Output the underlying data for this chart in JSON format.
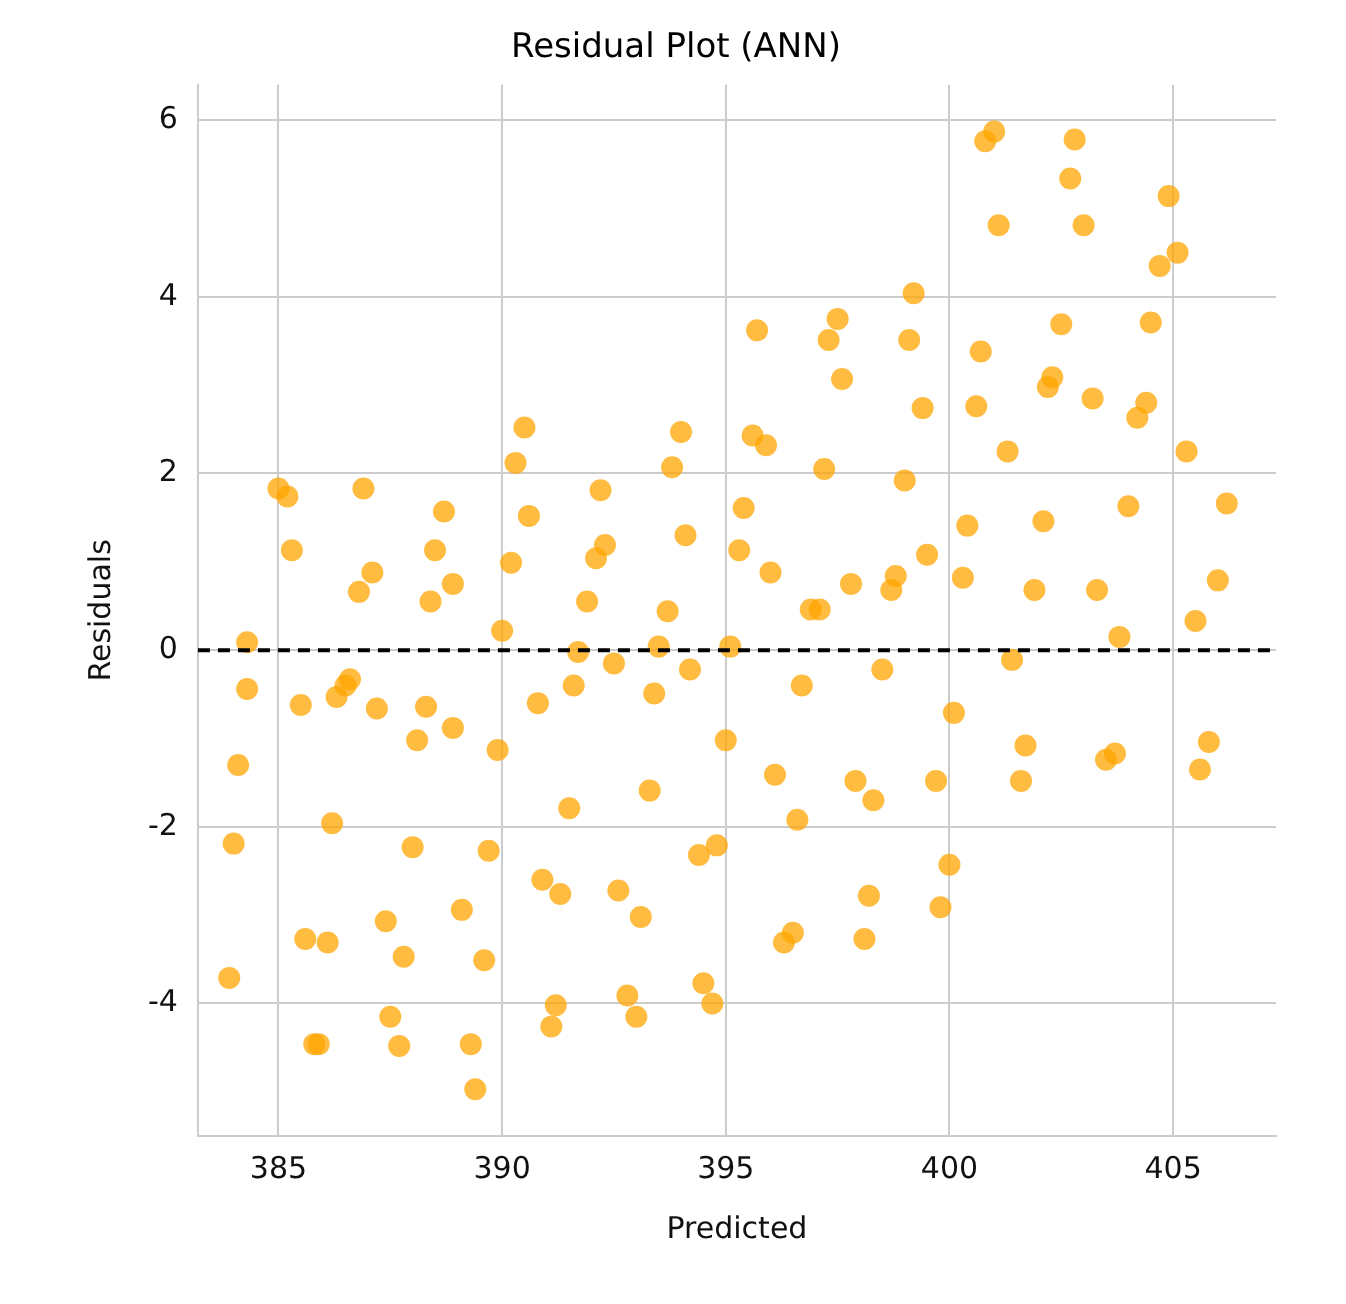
{
  "chart_data": {
    "type": "scatter",
    "title": "Residual Plot (ANN)",
    "xlabel": "Predicted",
    "ylabel": "Residuals",
    "xlim": [
      383.2,
      407.3
    ],
    "ylim": [
      -5.5,
      6.4
    ],
    "xticks": [
      385,
      390,
      395,
      400,
      405
    ],
    "yticks": [
      -4,
      -2,
      0,
      2,
      4,
      6
    ],
    "grid": true,
    "marker": "circle",
    "ref_lines": [
      {
        "axis": "y",
        "value": 0,
        "color": "#000000",
        "line_style": "dashed"
      }
    ],
    "series": [
      {
        "color": "#ffa500",
        "x": [
          383.9,
          384.0,
          384.1,
          384.3,
          384.3,
          385.0,
          385.2,
          385.3,
          385.5,
          385.6,
          385.8,
          385.9,
          386.1,
          386.2,
          386.3,
          386.5,
          386.6,
          386.8,
          386.9,
          387.1,
          387.2,
          387.4,
          387.5,
          387.7,
          387.8,
          388.0,
          388.1,
          388.3,
          388.4,
          388.5,
          388.7,
          388.9,
          388.9,
          389.1,
          389.3,
          389.4,
          389.6,
          389.7,
          389.9,
          390.0,
          390.2,
          390.3,
          390.5,
          390.6,
          390.8,
          390.9,
          391.1,
          391.2,
          391.3,
          391.5,
          391.6,
          391.7,
          391.9,
          392.1,
          392.2,
          392.3,
          392.5,
          392.6,
          392.8,
          393.0,
          393.1,
          393.3,
          393.4,
          393.5,
          393.7,
          393.8,
          394.0,
          394.1,
          394.2,
          394.4,
          394.5,
          394.7,
          394.8,
          395.0,
          395.1,
          395.3,
          395.4,
          395.6,
          395.7,
          395.9,
          396.0,
          396.1,
          396.3,
          396.5,
          396.6,
          396.7,
          396.9,
          397.1,
          397.2,
          397.3,
          397.5,
          397.6,
          397.8,
          397.9,
          398.1,
          398.2,
          398.3,
          398.5,
          398.7,
          398.8,
          399.0,
          399.1,
          399.2,
          399.4,
          399.5,
          399.7,
          399.8,
          400.0,
          400.1,
          400.3,
          400.4,
          400.6,
          400.7,
          400.8,
          401.0,
          401.1,
          401.3,
          401.4,
          401.6,
          401.7,
          401.9,
          402.1,
          402.2,
          402.3,
          402.5,
          402.7,
          402.8,
          403.0,
          403.2,
          403.3,
          403.5,
          403.7,
          403.8,
          404.0,
          404.2,
          404.4,
          404.5,
          404.7,
          404.9,
          405.1,
          405.3,
          405.5,
          405.6,
          405.8,
          406.0,
          406.2
        ],
        "values": [
          -3.71,
          -2.19,
          -1.3,
          -0.44,
          0.09,
          1.83,
          1.74,
          1.13,
          -0.62,
          -3.27,
          -4.46,
          -4.46,
          -3.31,
          -1.96,
          -0.53,
          -0.4,
          -0.33,
          0.66,
          1.83,
          0.88,
          -0.66,
          -3.07,
          -4.15,
          -4.48,
          -3.47,
          -2.23,
          -1.02,
          -0.64,
          0.55,
          1.13,
          1.57,
          0.75,
          -0.88,
          -2.94,
          -4.46,
          -4.97,
          -3.51,
          -2.27,
          -1.13,
          0.22,
          0.99,
          2.12,
          2.52,
          1.52,
          -0.6,
          -2.6,
          -4.26,
          -4.02,
          -2.76,
          -1.79,
          -0.4,
          -0.02,
          0.55,
          1.04,
          1.81,
          1.19,
          -0.15,
          -2.72,
          -3.91,
          -4.15,
          -3.02,
          -1.59,
          -0.49,
          0.04,
          0.44,
          2.07,
          2.47,
          1.3,
          -0.22,
          -2.32,
          -3.77,
          -4.0,
          -2.21,
          -1.02,
          0.04,
          1.13,
          1.61,
          2.43,
          3.62,
          2.32,
          0.88,
          -1.41,
          -3.31,
          -3.2,
          -1.92,
          -0.4,
          0.46,
          0.46,
          2.05,
          3.51,
          3.75,
          3.07,
          0.75,
          -1.48,
          -3.27,
          -2.78,
          -1.7,
          -0.22,
          0.68,
          0.84,
          1.92,
          3.51,
          4.04,
          2.74,
          1.08,
          -1.48,
          -2.91,
          -2.43,
          -0.71,
          0.82,
          1.41,
          2.76,
          3.38,
          5.76,
          5.87,
          4.81,
          2.25,
          -0.11,
          -1.48,
          -1.08,
          0.68,
          1.46,
          2.98,
          3.09,
          3.69,
          5.34,
          5.78,
          4.81,
          2.85,
          0.68,
          -1.24,
          -1.17,
          0.15,
          1.63,
          2.63,
          2.8,
          3.71,
          4.35,
          5.14,
          4.5,
          2.25,
          0.33,
          -1.35,
          -1.04,
          0.79,
          1.66
        ]
      }
    ]
  }
}
